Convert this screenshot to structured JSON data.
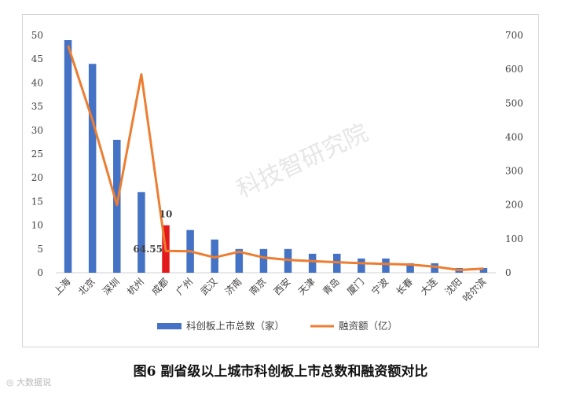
{
  "chart_data": {
    "type": "bar",
    "categories": [
      "上海",
      "北京",
      "深圳",
      "杭州",
      "成都",
      "广州",
      "武汉",
      "济南",
      "南京",
      "西安",
      "天津",
      "青岛",
      "厦门",
      "宁波",
      "长春",
      "大连",
      "沈阳",
      "哈尔滨"
    ],
    "series": [
      {
        "name": "科创板上市总数（家）",
        "type": "bar",
        "axis": "left",
        "values": [
          49,
          44,
          28,
          17,
          10,
          9,
          7,
          5,
          5,
          5,
          4,
          4,
          3,
          3,
          2,
          2,
          1,
          1
        ]
      },
      {
        "name": "融资额（亿）",
        "type": "line",
        "axis": "right",
        "values": [
          670,
          450,
          200,
          585,
          64.55,
          63,
          45,
          62,
          45,
          38,
          34,
          31,
          28,
          26,
          24,
          18,
          8,
          12
        ]
      }
    ],
    "highlight_index": 4,
    "annotations": {
      "bar_value": "10",
      "line_value": "64.55"
    },
    "ylim_left": [
      0,
      50
    ],
    "yticks_left": [
      0,
      5,
      10,
      15,
      20,
      25,
      30,
      35,
      40,
      45,
      50
    ],
    "ylim_right": [
      0,
      700
    ],
    "yticks_right": [
      0,
      100,
      200,
      300,
      400,
      500,
      600,
      700
    ],
    "legend_position": "bottom",
    "colors": {
      "bar": "#4472c4",
      "highlight": "#e31a1c",
      "line": "#ed7d31",
      "text": "#404040"
    }
  },
  "caption": "图6  副省级以上城市科创板上市总数和融资额对比",
  "watermark_text": "大数据说",
  "chart_watermark": "科技智研究院"
}
